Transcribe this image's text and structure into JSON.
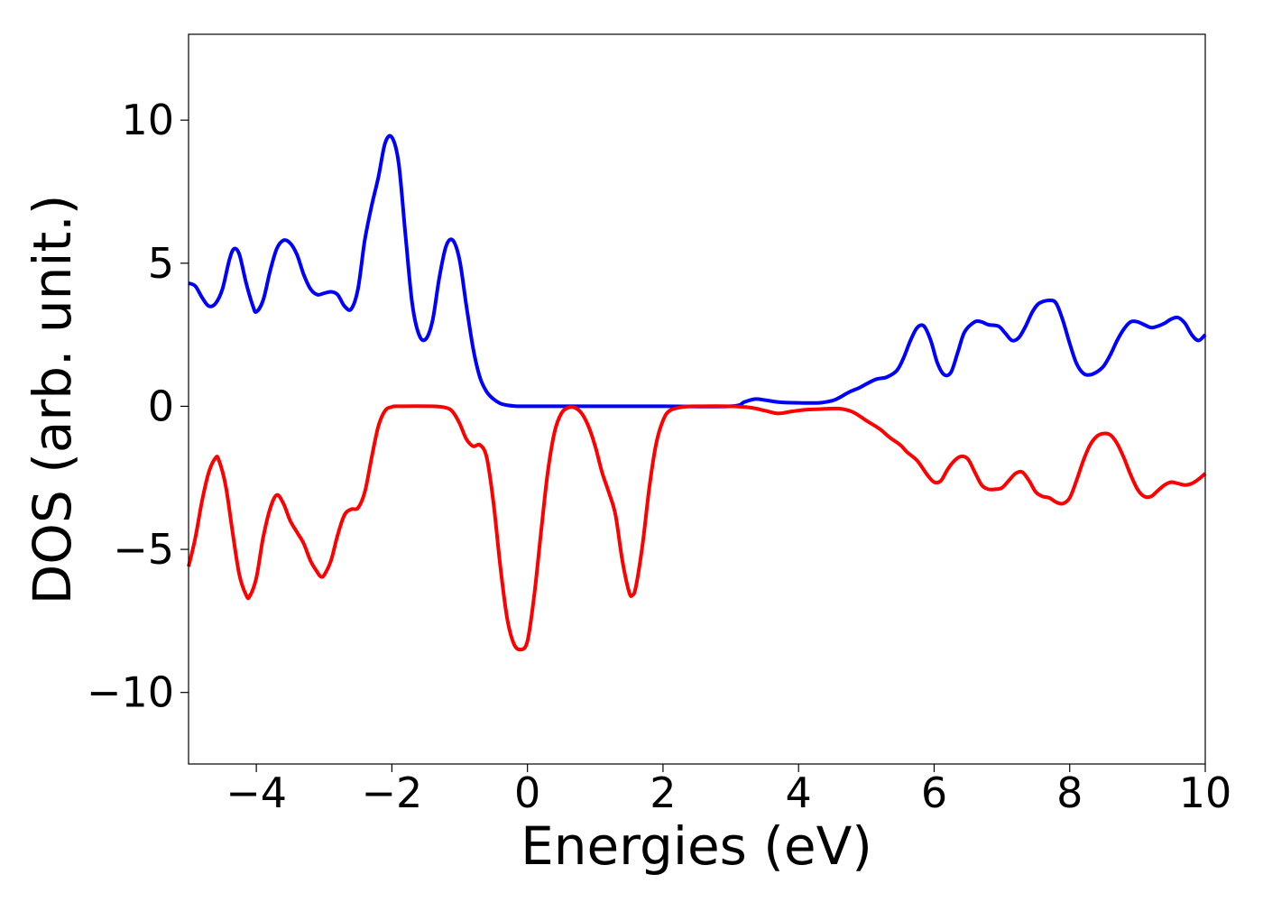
{
  "chart_data": {
    "type": "line",
    "title": "",
    "xlabel": "Energies (eV)",
    "ylabel": "DOS (arb. unit.)",
    "xlim": [
      -5,
      10
    ],
    "ylim": [
      -12.5,
      13
    ],
    "xticks": [
      -4,
      -2,
      0,
      2,
      4,
      6,
      8,
      10
    ],
    "xtick_labels": [
      "−4",
      "−2",
      "0",
      "2",
      "4",
      "6",
      "8",
      "10"
    ],
    "yticks": [
      -10,
      -5,
      0,
      5,
      10
    ],
    "ytick_labels": [
      "−10",
      "−5",
      "0",
      "5",
      "10"
    ],
    "grid": false,
    "legend": "none",
    "series": [
      {
        "color": "#0000ff",
        "points": [
          [
            -5.0,
            4.3
          ],
          [
            -4.9,
            4.2
          ],
          [
            -4.8,
            3.8
          ],
          [
            -4.7,
            3.5
          ],
          [
            -4.6,
            3.6
          ],
          [
            -4.5,
            4.1
          ],
          [
            -4.4,
            5.1
          ],
          [
            -4.33,
            5.5
          ],
          [
            -4.25,
            5.3
          ],
          [
            -4.15,
            4.3
          ],
          [
            -4.05,
            3.5
          ],
          [
            -4.0,
            3.3
          ],
          [
            -3.9,
            3.7
          ],
          [
            -3.8,
            4.7
          ],
          [
            -3.7,
            5.5
          ],
          [
            -3.6,
            5.8
          ],
          [
            -3.5,
            5.7
          ],
          [
            -3.4,
            5.3
          ],
          [
            -3.3,
            4.6
          ],
          [
            -3.2,
            4.1
          ],
          [
            -3.1,
            3.9
          ],
          [
            -3.0,
            3.95
          ],
          [
            -2.9,
            4.0
          ],
          [
            -2.8,
            3.9
          ],
          [
            -2.7,
            3.5
          ],
          [
            -2.6,
            3.4
          ],
          [
            -2.5,
            4.1
          ],
          [
            -2.4,
            5.8
          ],
          [
            -2.3,
            7.0
          ],
          [
            -2.2,
            8.0
          ],
          [
            -2.1,
            9.2
          ],
          [
            -2.0,
            9.4
          ],
          [
            -1.9,
            8.5
          ],
          [
            -1.8,
            6.0
          ],
          [
            -1.7,
            3.6
          ],
          [
            -1.6,
            2.5
          ],
          [
            -1.5,
            2.35
          ],
          [
            -1.4,
            3.0
          ],
          [
            -1.3,
            4.5
          ],
          [
            -1.2,
            5.6
          ],
          [
            -1.1,
            5.8
          ],
          [
            -1.0,
            5.1
          ],
          [
            -0.9,
            3.5
          ],
          [
            -0.8,
            2.0
          ],
          [
            -0.7,
            1.0
          ],
          [
            -0.6,
            0.5
          ],
          [
            -0.5,
            0.25
          ],
          [
            -0.4,
            0.1
          ],
          [
            -0.3,
            0.04
          ],
          [
            -0.2,
            0.01
          ],
          [
            0.0,
            0.0
          ],
          [
            1.0,
            0.0
          ],
          [
            2.0,
            0.0
          ],
          [
            3.0,
            0.0
          ],
          [
            3.2,
            0.15
          ],
          [
            3.35,
            0.25
          ],
          [
            3.5,
            0.22
          ],
          [
            3.7,
            0.15
          ],
          [
            4.0,
            0.12
          ],
          [
            4.3,
            0.12
          ],
          [
            4.5,
            0.2
          ],
          [
            4.6,
            0.3
          ],
          [
            4.75,
            0.5
          ],
          [
            4.9,
            0.65
          ],
          [
            5.0,
            0.78
          ],
          [
            5.15,
            0.95
          ],
          [
            5.3,
            1.02
          ],
          [
            5.45,
            1.25
          ],
          [
            5.55,
            1.7
          ],
          [
            5.65,
            2.3
          ],
          [
            5.75,
            2.75
          ],
          [
            5.85,
            2.8
          ],
          [
            5.95,
            2.3
          ],
          [
            6.05,
            1.5
          ],
          [
            6.15,
            1.1
          ],
          [
            6.25,
            1.2
          ],
          [
            6.35,
            1.9
          ],
          [
            6.45,
            2.6
          ],
          [
            6.6,
            2.95
          ],
          [
            6.7,
            2.95
          ],
          [
            6.8,
            2.85
          ],
          [
            6.95,
            2.8
          ],
          [
            7.05,
            2.55
          ],
          [
            7.15,
            2.3
          ],
          [
            7.25,
            2.4
          ],
          [
            7.35,
            2.8
          ],
          [
            7.45,
            3.3
          ],
          [
            7.55,
            3.6
          ],
          [
            7.7,
            3.7
          ],
          [
            7.8,
            3.6
          ],
          [
            7.9,
            3.0
          ],
          [
            8.0,
            2.2
          ],
          [
            8.1,
            1.5
          ],
          [
            8.2,
            1.15
          ],
          [
            8.3,
            1.1
          ],
          [
            8.4,
            1.2
          ],
          [
            8.5,
            1.4
          ],
          [
            8.6,
            1.8
          ],
          [
            8.7,
            2.3
          ],
          [
            8.8,
            2.7
          ],
          [
            8.9,
            2.95
          ],
          [
            9.0,
            2.95
          ],
          [
            9.1,
            2.85
          ],
          [
            9.2,
            2.75
          ],
          [
            9.3,
            2.8
          ],
          [
            9.4,
            2.9
          ],
          [
            9.5,
            3.05
          ],
          [
            9.6,
            3.1
          ],
          [
            9.7,
            2.9
          ],
          [
            9.8,
            2.5
          ],
          [
            9.9,
            2.3
          ],
          [
            10.0,
            2.5
          ]
        ]
      },
      {
        "color": "#ff0000",
        "points": [
          [
            -5.0,
            -5.6
          ],
          [
            -4.9,
            -4.6
          ],
          [
            -4.8,
            -3.3
          ],
          [
            -4.7,
            -2.3
          ],
          [
            -4.6,
            -1.8
          ],
          [
            -4.55,
            -1.9
          ],
          [
            -4.45,
            -2.8
          ],
          [
            -4.35,
            -4.4
          ],
          [
            -4.25,
            -5.9
          ],
          [
            -4.15,
            -6.6
          ],
          [
            -4.1,
            -6.65
          ],
          [
            -4.0,
            -6.0
          ],
          [
            -3.9,
            -4.6
          ],
          [
            -3.8,
            -3.6
          ],
          [
            -3.7,
            -3.1
          ],
          [
            -3.6,
            -3.4
          ],
          [
            -3.5,
            -4.0
          ],
          [
            -3.4,
            -4.4
          ],
          [
            -3.3,
            -4.8
          ],
          [
            -3.2,
            -5.4
          ],
          [
            -3.1,
            -5.8
          ],
          [
            -3.05,
            -5.95
          ],
          [
            -3.0,
            -5.9
          ],
          [
            -2.9,
            -5.4
          ],
          [
            -2.8,
            -4.5
          ],
          [
            -2.7,
            -3.8
          ],
          [
            -2.6,
            -3.6
          ],
          [
            -2.5,
            -3.55
          ],
          [
            -2.4,
            -3.0
          ],
          [
            -2.3,
            -1.8
          ],
          [
            -2.2,
            -0.7
          ],
          [
            -2.1,
            -0.15
          ],
          [
            -2.0,
            -0.02
          ],
          [
            -1.9,
            0.0
          ],
          [
            -1.4,
            0.0
          ],
          [
            -1.2,
            -0.05
          ],
          [
            -1.1,
            -0.2
          ],
          [
            -1.0,
            -0.6
          ],
          [
            -0.9,
            -1.15
          ],
          [
            -0.8,
            -1.4
          ],
          [
            -0.7,
            -1.35
          ],
          [
            -0.6,
            -1.8
          ],
          [
            -0.5,
            -3.4
          ],
          [
            -0.4,
            -5.6
          ],
          [
            -0.3,
            -7.4
          ],
          [
            -0.2,
            -8.3
          ],
          [
            -0.1,
            -8.5
          ],
          [
            0.0,
            -8.2
          ],
          [
            0.1,
            -6.6
          ],
          [
            0.2,
            -4.4
          ],
          [
            0.3,
            -2.3
          ],
          [
            0.4,
            -0.9
          ],
          [
            0.5,
            -0.25
          ],
          [
            0.6,
            -0.05
          ],
          [
            0.7,
            -0.05
          ],
          [
            0.8,
            -0.25
          ],
          [
            0.9,
            -0.7
          ],
          [
            1.0,
            -1.4
          ],
          [
            1.1,
            -2.3
          ],
          [
            1.2,
            -3.0
          ],
          [
            1.3,
            -3.8
          ],
          [
            1.4,
            -5.4
          ],
          [
            1.5,
            -6.5
          ],
          [
            1.55,
            -6.6
          ],
          [
            1.6,
            -6.3
          ],
          [
            1.7,
            -4.8
          ],
          [
            1.8,
            -2.8
          ],
          [
            1.9,
            -1.3
          ],
          [
            2.0,
            -0.5
          ],
          [
            2.1,
            -0.15
          ],
          [
            2.3,
            -0.02
          ],
          [
            2.5,
            0.0
          ],
          [
            3.0,
            0.0
          ],
          [
            3.3,
            -0.05
          ],
          [
            3.5,
            -0.15
          ],
          [
            3.7,
            -0.25
          ],
          [
            3.9,
            -0.18
          ],
          [
            4.1,
            -0.12
          ],
          [
            4.3,
            -0.1
          ],
          [
            4.6,
            -0.08
          ],
          [
            4.8,
            -0.2
          ],
          [
            5.0,
            -0.5
          ],
          [
            5.2,
            -0.8
          ],
          [
            5.35,
            -1.1
          ],
          [
            5.5,
            -1.35
          ],
          [
            5.6,
            -1.6
          ],
          [
            5.75,
            -1.9
          ],
          [
            5.9,
            -2.4
          ],
          [
            6.0,
            -2.65
          ],
          [
            6.1,
            -2.6
          ],
          [
            6.2,
            -2.2
          ],
          [
            6.3,
            -1.9
          ],
          [
            6.4,
            -1.75
          ],
          [
            6.5,
            -1.85
          ],
          [
            6.6,
            -2.3
          ],
          [
            6.7,
            -2.75
          ],
          [
            6.8,
            -2.9
          ],
          [
            6.9,
            -2.9
          ],
          [
            7.0,
            -2.85
          ],
          [
            7.1,
            -2.6
          ],
          [
            7.2,
            -2.35
          ],
          [
            7.3,
            -2.3
          ],
          [
            7.4,
            -2.6
          ],
          [
            7.5,
            -3.0
          ],
          [
            7.6,
            -3.15
          ],
          [
            7.7,
            -3.2
          ],
          [
            7.8,
            -3.35
          ],
          [
            7.9,
            -3.4
          ],
          [
            8.0,
            -3.2
          ],
          [
            8.1,
            -2.6
          ],
          [
            8.2,
            -1.9
          ],
          [
            8.3,
            -1.35
          ],
          [
            8.4,
            -1.05
          ],
          [
            8.5,
            -0.95
          ],
          [
            8.6,
            -1.0
          ],
          [
            8.7,
            -1.3
          ],
          [
            8.8,
            -1.8
          ],
          [
            8.9,
            -2.4
          ],
          [
            9.0,
            -2.9
          ],
          [
            9.1,
            -3.15
          ],
          [
            9.2,
            -3.15
          ],
          [
            9.3,
            -2.95
          ],
          [
            9.4,
            -2.75
          ],
          [
            9.5,
            -2.65
          ],
          [
            9.6,
            -2.7
          ],
          [
            9.7,
            -2.75
          ],
          [
            9.8,
            -2.7
          ],
          [
            9.9,
            -2.55
          ],
          [
            10.0,
            -2.35
          ]
        ]
      }
    ]
  }
}
